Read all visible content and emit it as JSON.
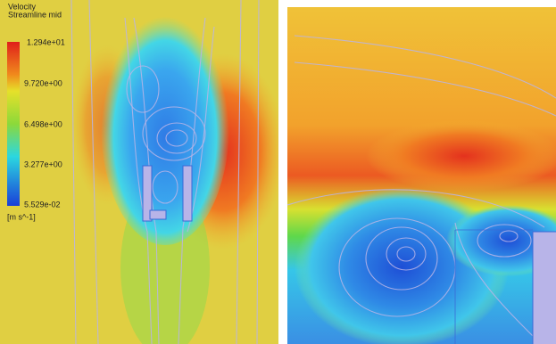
{
  "legend": {
    "title": "Velocity",
    "subtitle": "Streamline mid",
    "ticks": [
      "1.294e+01",
      "9.720e+00",
      "6.498e+00",
      "3.277e+00",
      "5.529e-02"
    ],
    "unit": "[m s^-1]"
  }
}
